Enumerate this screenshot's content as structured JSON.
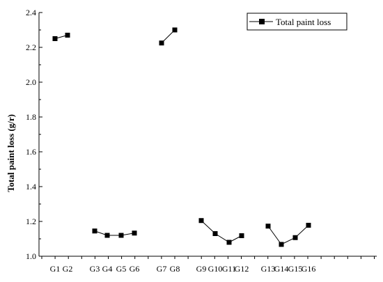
{
  "chart_data": {
    "type": "line",
    "title": "",
    "xlabel": "",
    "ylabel": "Total paint loss  (g/r)",
    "ylim": [
      1.0,
      2.4
    ],
    "yticks": [
      "1.0",
      "1.2",
      "1.4",
      "1.6",
      "1.8",
      "2.0",
      "2.2",
      "2.4"
    ],
    "legend": {
      "position": "top-right",
      "label": "Total paint loss"
    },
    "grid": false,
    "series": [
      {
        "name": "Total paint loss",
        "groups": [
          {
            "points": [
              {
                "x": "G1",
                "y": 2.25
              },
              {
                "x": "G2",
                "y": 2.27
              }
            ]
          },
          {
            "points": [
              {
                "x": "G3",
                "y": 1.145
              },
              {
                "x": "G4",
                "y": 1.12
              },
              {
                "x": "G5",
                "y": 1.12
              },
              {
                "x": "G6",
                "y": 1.133
              }
            ]
          },
          {
            "points": [
              {
                "x": "G7",
                "y": 2.225
              },
              {
                "x": "G8",
                "y": 2.3
              }
            ]
          },
          {
            "points": [
              {
                "x": "G9",
                "y": 1.205
              },
              {
                "x": "G10",
                "y": 1.13
              },
              {
                "x": "G11",
                "y": 1.08
              },
              {
                "x": "G12",
                "y": 1.118
              }
            ]
          },
          {
            "points": [
              {
                "x": "G13",
                "y": 1.173
              },
              {
                "x": "G14",
                "y": 1.068
              },
              {
                "x": "G15",
                "y": 1.107
              },
              {
                "x": "G16",
                "y": 1.178
              }
            ]
          }
        ]
      }
    ],
    "x_tick_labels": [
      "G1",
      "G2",
      "G3",
      "G4",
      "G5",
      "G6",
      "G7",
      "G8",
      "G9",
      "G10",
      "G11",
      "G12",
      "G13",
      "G14",
      "G15",
      "G16"
    ],
    "colors": {
      "line": "#000000",
      "marker": "#000000"
    }
  }
}
